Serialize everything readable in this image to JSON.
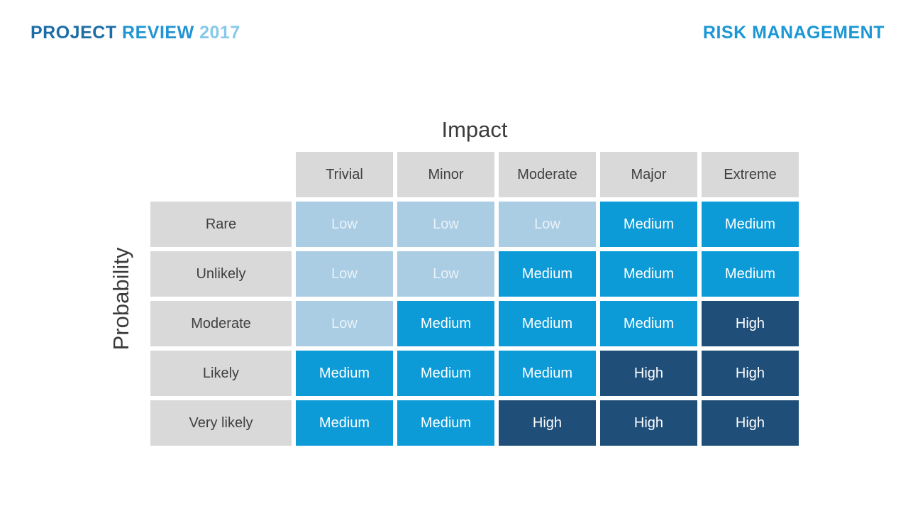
{
  "header": {
    "left": {
      "word1": "PROJECT",
      "word2": "REVIEW",
      "word3": "2017"
    },
    "right": "RISK MANAGEMENT"
  },
  "colors": {
    "left_word1": "#1c6da6",
    "left_word2": "#2194d3",
    "left_word3": "#87c8eb",
    "right": "#1b97d5",
    "axis_title": "#3b3b3b",
    "header_cell_bg": "#d9d9d9",
    "header_cell_text": "#404040",
    "value_text": "#ffffff",
    "low_text": "#e9f2f9",
    "low": "#aacde3",
    "medium": "#0d9bd8",
    "high": "#1f4e79"
  },
  "chart_data": {
    "type": "heatmap",
    "title": "",
    "xlabel": "Impact",
    "ylabel": "Probability",
    "x_categories": [
      "Trivial",
      "Minor",
      "Moderate",
      "Major",
      "Extreme"
    ],
    "y_categories": [
      "Rare",
      "Unlikely",
      "Moderate",
      "Likely",
      "Very likely"
    ],
    "values": [
      [
        "Low",
        "Low",
        "Low",
        "Medium",
        "Medium"
      ],
      [
        "Low",
        "Low",
        "Medium",
        "Medium",
        "Medium"
      ],
      [
        "Low",
        "Medium",
        "Medium",
        "Medium",
        "High"
      ],
      [
        "Medium",
        "Medium",
        "Medium",
        "High",
        "High"
      ],
      [
        "Medium",
        "Medium",
        "High",
        "High",
        "High"
      ]
    ],
    "legend": {
      "Low": "#aacde3",
      "Medium": "#0d9bd8",
      "High": "#1f4e79"
    },
    "legend_position": "none",
    "grid": false
  }
}
